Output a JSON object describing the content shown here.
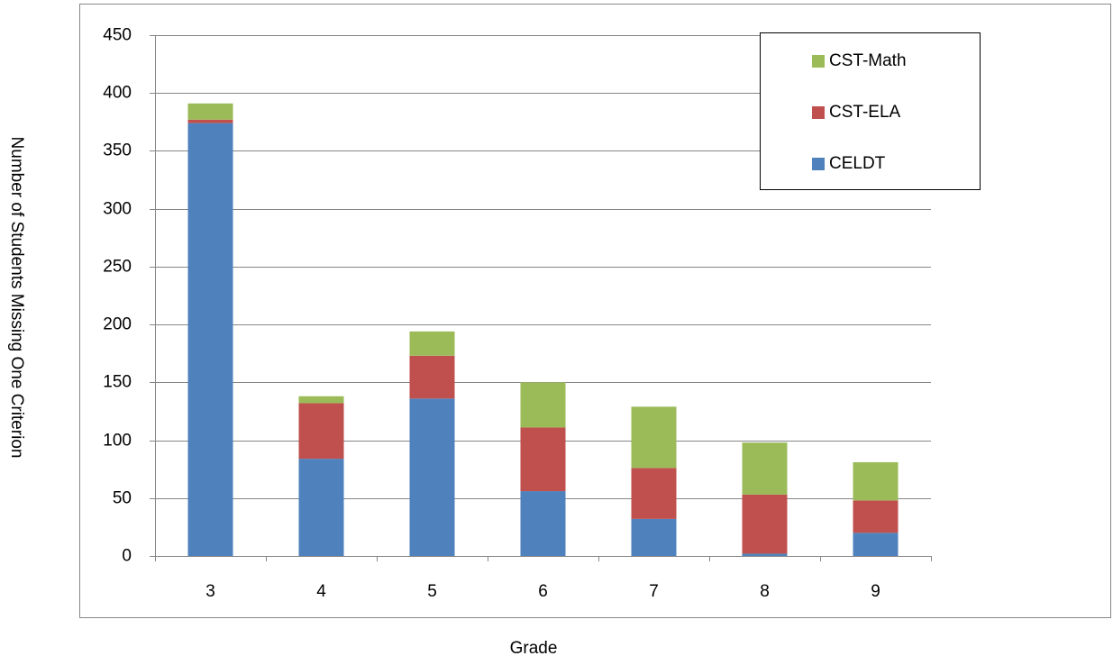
{
  "chart_data": {
    "type": "stacked_bar",
    "x_label": "Grade",
    "y_label": "Number of Students Missing One Criterion",
    "categories": [
      "3",
      "4",
      "5",
      "6",
      "7",
      "8",
      "9"
    ],
    "series": [
      {
        "name": "CELDT",
        "color": "#4f81bd",
        "values": [
          374,
          84,
          136,
          56,
          32,
          2,
          20
        ]
      },
      {
        "name": "CST-ELA",
        "color": "#c0504d",
        "values": [
          3,
          48,
          37,
          55,
          44,
          51,
          28
        ]
      },
      {
        "name": "CST-Math",
        "color": "#9bbb59",
        "values": [
          14,
          6,
          21,
          39,
          53,
          45,
          33
        ]
      }
    ],
    "ylim": [
      0,
      450
    ],
    "yticks": [
      0,
      50,
      100,
      150,
      200,
      250,
      300,
      350,
      400,
      450
    ],
    "grid": true,
    "legend": "upper-right"
  }
}
